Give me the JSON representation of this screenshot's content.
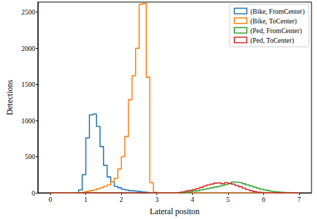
{
  "chart_data": {
    "type": "histogram",
    "x_label": "Lateral positon",
    "y_label": "Detections",
    "bins": [
      0,
      0.1,
      0.2,
      0.3,
      0.4,
      0.5,
      0.6,
      0.7,
      0.8,
      0.9,
      1,
      1.1,
      1.2,
      1.3,
      1.4,
      1.5,
      1.6,
      1.7,
      1.8,
      1.9,
      2,
      2.1,
      2.2,
      2.3,
      2.4,
      2.5,
      2.6,
      2.7,
      2.8,
      2.9,
      3,
      3.1,
      3.2,
      3.3,
      3.4,
      3.5,
      3.6,
      3.7,
      3.8,
      3.9,
      4,
      4.1,
      4.2,
      4.3,
      4.4,
      4.5,
      4.6,
      4.7,
      4.8,
      4.9,
      5,
      5.1,
      5.2,
      5.3,
      5.4,
      5.5,
      5.6,
      5.7,
      5.8,
      5.9,
      6,
      6.1,
      6.2,
      6.3,
      6.4,
      6.5,
      6.6,
      6.7,
      6.8,
      6.9,
      7
    ],
    "series": [
      {
        "name": "(Bike, FromCenter)",
        "color": "#1f77b4",
        "values": [
          0,
          0,
          0,
          0,
          0,
          2,
          3,
          5,
          40,
          250,
          760,
          1080,
          1090,
          920,
          640,
          380,
          220,
          150,
          90,
          70,
          50,
          40,
          30,
          25,
          20,
          15,
          10,
          5,
          2,
          0,
          0,
          0,
          0,
          0,
          0,
          0,
          0,
          0,
          0,
          0,
          0,
          0,
          0,
          0,
          0,
          0,
          0,
          0,
          0,
          0,
          0,
          0,
          0,
          0,
          0,
          0,
          0,
          0,
          0,
          0,
          0,
          0,
          0,
          0,
          0,
          0,
          0,
          0,
          0,
          0
        ]
      },
      {
        "name": "(Bike, ToCenter)",
        "color": "#ff7f0e",
        "values": [
          0,
          0,
          0,
          0,
          0,
          0,
          0,
          0,
          0,
          10,
          20,
          30,
          40,
          55,
          70,
          90,
          110,
          150,
          200,
          330,
          500,
          780,
          1290,
          1620,
          2000,
          2610,
          2620,
          1600,
          140,
          10,
          0,
          0,
          0,
          0,
          0,
          0,
          0,
          0,
          0,
          0,
          0,
          0,
          0,
          0,
          0,
          0,
          0,
          0,
          0,
          0,
          0,
          0,
          0,
          0,
          0,
          0,
          0,
          0,
          0,
          0,
          0,
          0,
          0,
          0,
          0,
          0,
          0,
          0,
          0,
          0
        ]
      },
      {
        "name": "(Ped, FromCenter)",
        "color": "#2ca02c",
        "values": [
          0,
          0,
          0,
          0,
          0,
          0,
          0,
          0,
          0,
          0,
          0,
          0,
          0,
          0,
          0,
          0,
          0,
          0,
          0,
          0,
          0,
          0,
          0,
          0,
          0,
          0,
          0,
          0,
          0,
          0,
          0,
          0,
          0,
          0,
          0,
          2,
          5,
          8,
          12,
          18,
          25,
          30,
          40,
          50,
          60,
          70,
          80,
          90,
          100,
          115,
          130,
          150,
          145,
          140,
          125,
          110,
          95,
          80,
          65,
          50,
          40,
          30,
          22,
          15,
          10,
          6,
          4,
          2,
          1,
          0
        ]
      },
      {
        "name": "(Ped, ToCenter)",
        "color": "#d62728",
        "values": [
          0,
          0,
          0,
          0,
          0,
          0,
          0,
          0,
          0,
          0,
          0,
          0,
          0,
          0,
          0,
          0,
          0,
          0,
          0,
          0,
          0,
          0,
          0,
          0,
          0,
          0,
          0,
          0,
          0,
          0,
          0,
          0,
          0,
          0,
          0,
          3,
          8,
          15,
          25,
          35,
          45,
          60,
          75,
          95,
          110,
          120,
          135,
          140,
          125,
          140,
          130,
          120,
          100,
          85,
          65,
          45,
          30,
          18,
          10,
          5,
          2,
          0,
          0,
          0,
          0,
          0,
          0,
          0,
          0,
          0
        ]
      }
    ],
    "xlim": [
      -0.35,
      7.35
    ],
    "ylim": [
      0,
      2640
    ],
    "xticks": [
      0,
      1,
      2,
      3,
      4,
      5,
      6,
      7
    ],
    "yticks": [
      0,
      500,
      1000,
      1500,
      2000,
      2500
    ],
    "grid": false,
    "legend": "upper right"
  }
}
